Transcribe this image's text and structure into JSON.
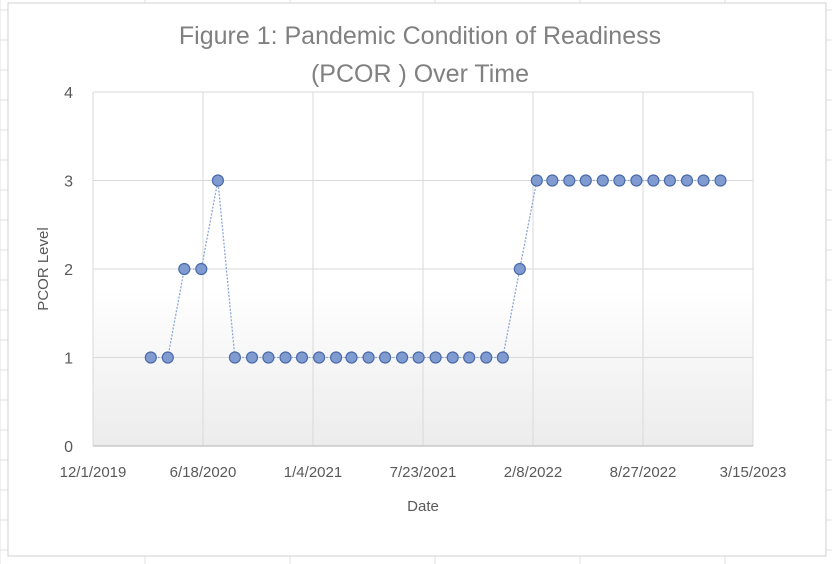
{
  "chart_data": {
    "type": "line",
    "title_lines": [
      "Figure 1:  Pandemic Condition of Readiness",
      "(PCOR ) Over Time"
    ],
    "xlabel": "Date",
    "ylabel": "PCOR Level",
    "x_axis": {
      "type": "date",
      "range": [
        "2019-12-01",
        "2023-03-15"
      ],
      "ticks": [
        "2019-12-01",
        "2020-06-18",
        "2021-01-04",
        "2021-07-23",
        "2022-02-08",
        "2022-08-27",
        "2023-03-15"
      ],
      "tick_labels": [
        "12/1/2019",
        "6/18/2020",
        "1/4/2021",
        "7/23/2021",
        "2/8/2022",
        "8/27/2022",
        "3/15/2023"
      ]
    },
    "y_axis": {
      "range": [
        0,
        4
      ],
      "ticks": [
        0,
        1,
        2,
        3,
        4
      ],
      "tick_labels": [
        "0",
        "1",
        "2",
        "3",
        "4"
      ]
    },
    "grid": true,
    "legend": "none",
    "colors": {
      "series_line": "#8ea8d6",
      "marker_fill": "#7f9bd0",
      "marker_stroke": "#4b6aa9",
      "grid": "#d9d9d9",
      "text": "#595959",
      "title": "#808080"
    },
    "series": [
      {
        "x": [
          "2020-03-15",
          "2020-04-15",
          "2020-05-15",
          "2020-06-15",
          "2020-07-15",
          "2020-08-15",
          "2020-09-15",
          "2020-10-15",
          "2020-11-15",
          "2020-12-15",
          "2021-01-15",
          "2021-02-15",
          "2021-03-15",
          "2021-04-15",
          "2021-05-15",
          "2021-06-15",
          "2021-07-15",
          "2021-08-15",
          "2021-09-15",
          "2021-10-15",
          "2021-11-15",
          "2021-12-15",
          "2022-01-15",
          "2022-02-15",
          "2022-03-15",
          "2022-04-15",
          "2022-05-15",
          "2022-06-15",
          "2022-07-15",
          "2022-08-15",
          "2022-09-15",
          "2022-10-15",
          "2022-11-15",
          "2022-12-15",
          "2023-01-15"
        ],
        "y": [
          1,
          1,
          2,
          2,
          3,
          1,
          1,
          1,
          1,
          1,
          1,
          1,
          1,
          1,
          1,
          1,
          1,
          1,
          1,
          1,
          1,
          1,
          2,
          3,
          3,
          3,
          3,
          3,
          3,
          3,
          3,
          3,
          3,
          3,
          3
        ]
      }
    ]
  }
}
